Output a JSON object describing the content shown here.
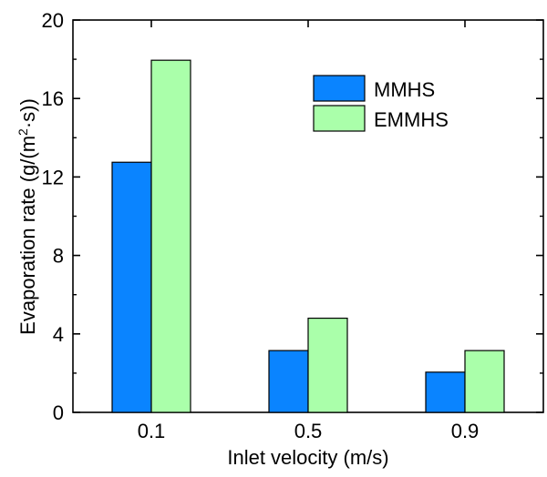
{
  "chart_data": {
    "type": "bar",
    "categories": [
      "0.1",
      "0.5",
      "0.9"
    ],
    "series": [
      {
        "name": "MMHS",
        "values": [
          12.75,
          3.15,
          2.05
        ],
        "color": "#0a84ff"
      },
      {
        "name": "EMMHS",
        "values": [
          17.95,
          4.8,
          3.15
        ],
        "color": "#aaffaa"
      }
    ],
    "xlabel": "Inlet velocity (m/s)",
    "ylabel_parts": {
      "prefix": "Evaporation rate (g/(m",
      "superscript": "2",
      "suffix": "·s))"
    },
    "ylim": [
      0,
      20
    ],
    "yticks": [
      "0",
      "4",
      "8",
      "12",
      "16",
      "20"
    ],
    "grid": false,
    "legend_position": "top-right"
  },
  "colors": {
    "axis": "#000000",
    "bar_edge": "#000000"
  }
}
